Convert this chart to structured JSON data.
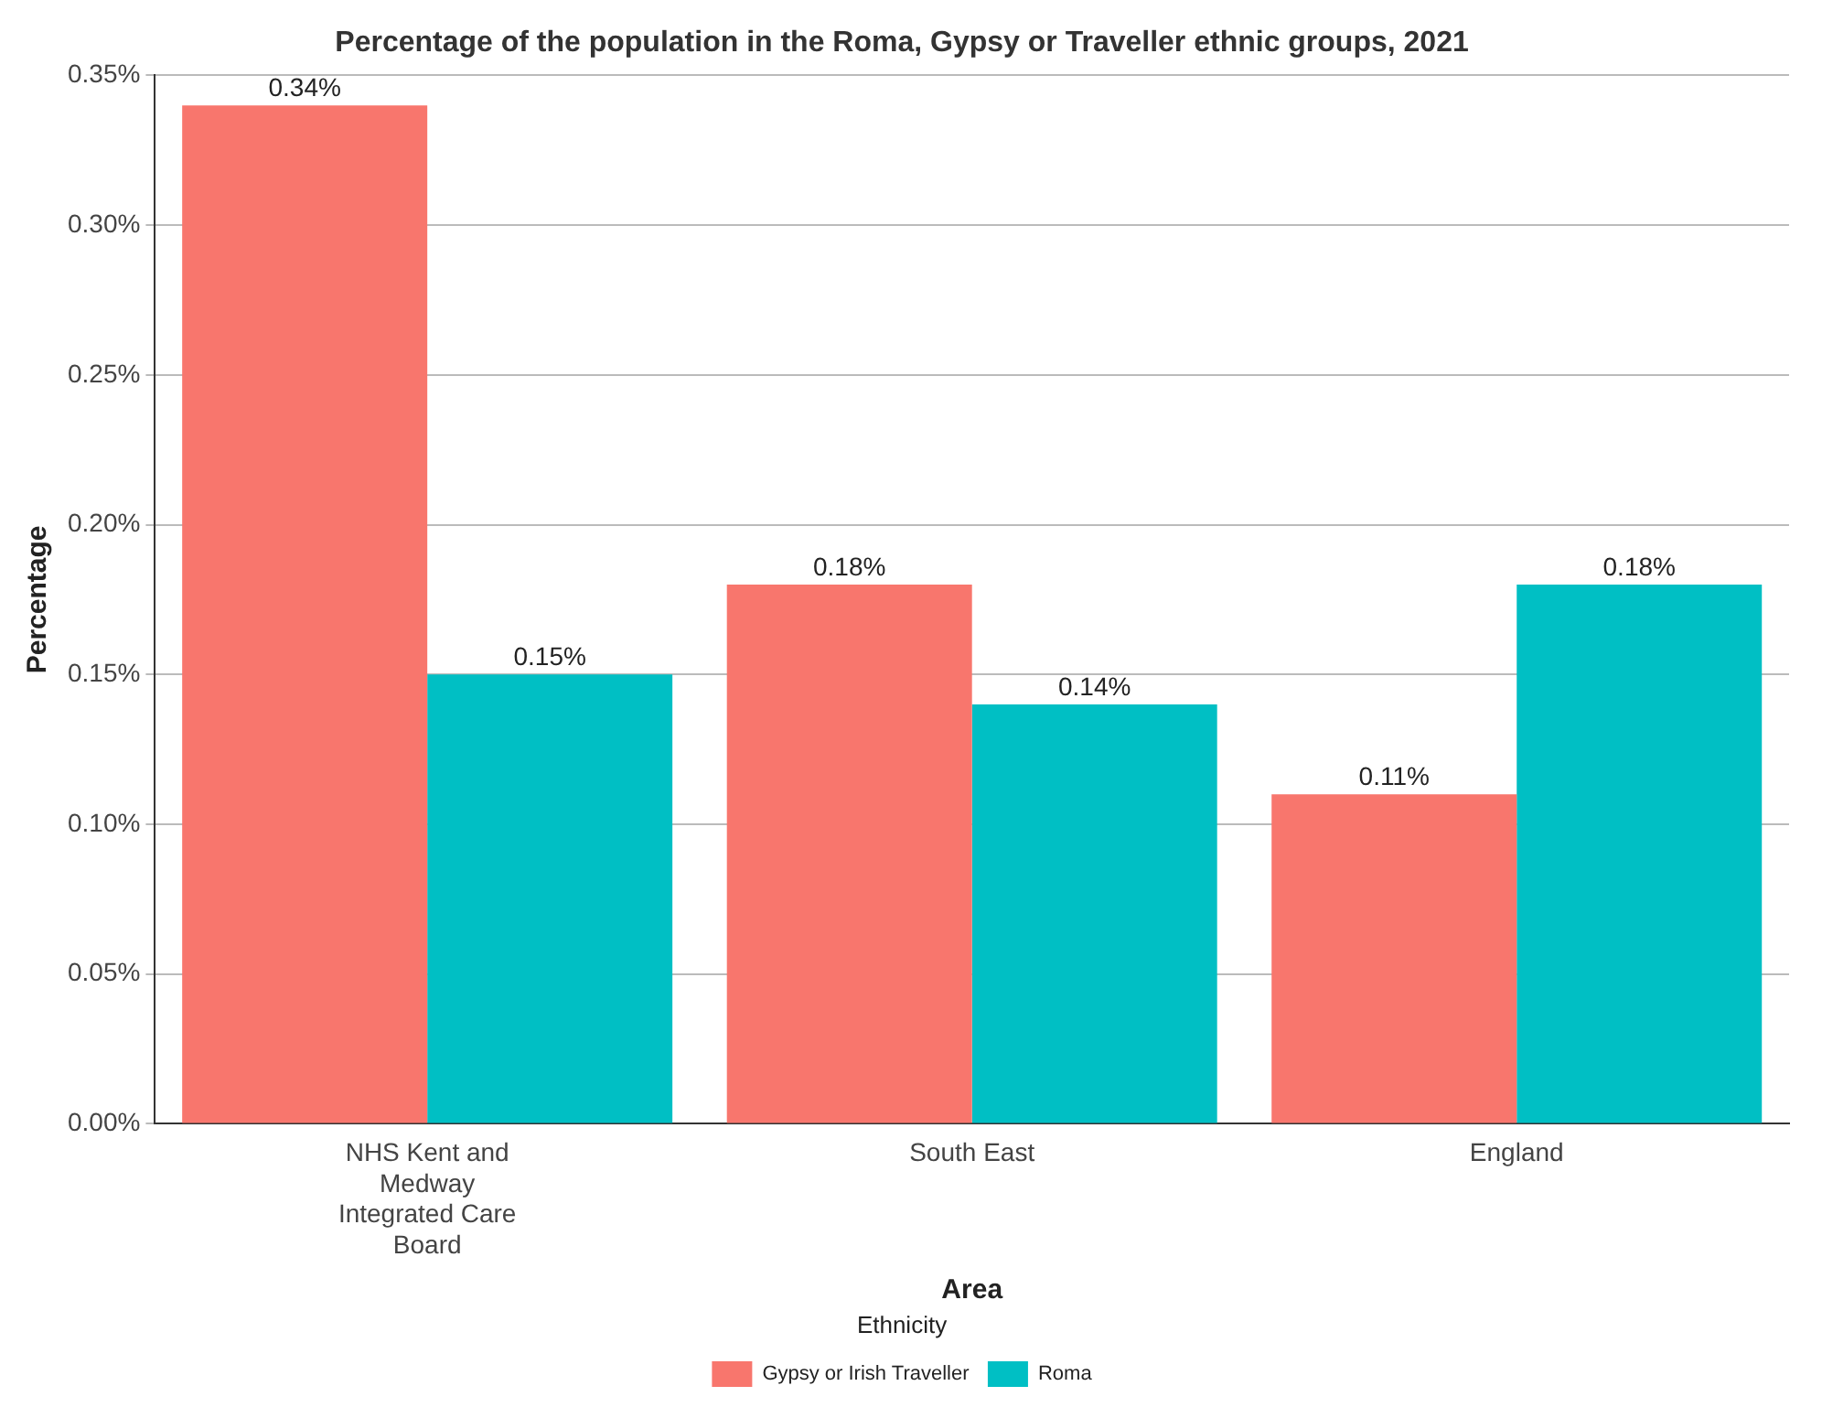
{
  "chart_data": {
    "type": "bar",
    "title": "Percentage of the population in the Roma, Gypsy or Traveller ethnic groups, 2021",
    "xlabel": "Area",
    "ylabel": "Percentage",
    "legend_title": "Ethnicity",
    "categories": [
      "NHS Kent and Medway Integrated Care Board",
      "South East",
      "England"
    ],
    "series": [
      {
        "name": "Gypsy or Irish Traveller",
        "color": "#f8766d",
        "values": [
          0.34,
          0.18,
          0.11
        ],
        "value_labels": [
          "0.34%",
          "0.18%",
          "0.11%"
        ]
      },
      {
        "name": "Roma",
        "color": "#00bfc4",
        "values": [
          0.15,
          0.14,
          0.18
        ],
        "value_labels": [
          "0.15%",
          "0.14%",
          "0.18%"
        ]
      }
    ],
    "ylim": [
      0,
      0.35
    ],
    "yticks": [
      {
        "value": 0,
        "label": "0.00%"
      },
      {
        "value": 0.05,
        "label": "0.05%"
      },
      {
        "value": 0.1,
        "label": "0.10%"
      },
      {
        "value": 0.15,
        "label": "0.15%"
      },
      {
        "value": 0.2,
        "label": "0.20%"
      },
      {
        "value": 0.25,
        "label": "0.25%"
      },
      {
        "value": 0.3,
        "label": "0.30%"
      },
      {
        "value": 0.35,
        "label": "0.35%"
      }
    ],
    "grid": "y",
    "legend": "bottom"
  }
}
